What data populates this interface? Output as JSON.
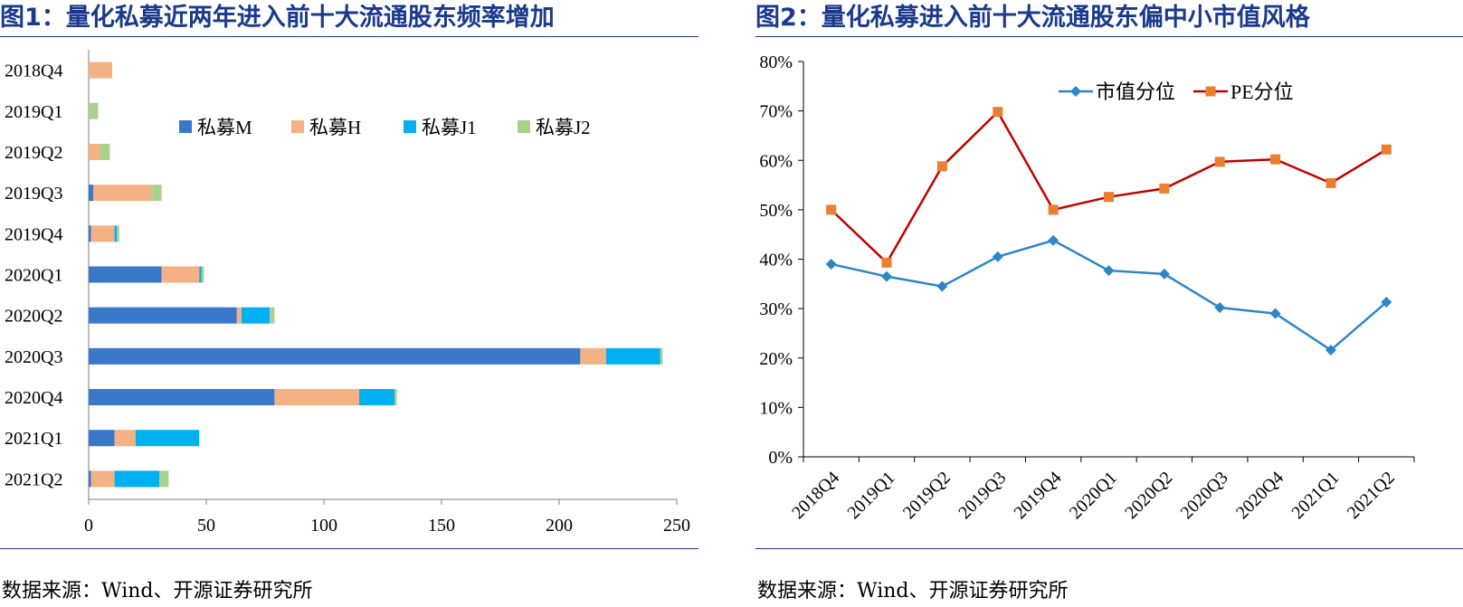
{
  "figures": [
    {
      "title": "图1：量化私募近两年进入前十大流通股东频率增加",
      "source": "数据来源：Wind、开源证券研究所"
    },
    {
      "title": "图2：量化私募进入前十大流通股东偏中小市值风格",
      "source": "数据来源：Wind、开源证券研究所"
    }
  ],
  "chart_data": [
    {
      "type": "bar",
      "orientation": "horizontal",
      "stacked": true,
      "categories": [
        "2018Q4",
        "2019Q1",
        "2019Q2",
        "2019Q3",
        "2019Q4",
        "2020Q1",
        "2020Q2",
        "2020Q3",
        "2020Q4",
        "2021Q1",
        "2021Q2"
      ],
      "series": [
        {
          "name": "私募M",
          "color": "#3a78c9",
          "values": [
            0,
            0,
            0,
            2,
            1,
            31,
            63,
            209,
            79,
            11,
            1
          ]
        },
        {
          "name": "私募H",
          "color": "#f4b183",
          "values": [
            10,
            0,
            5,
            25,
            10,
            16,
            2,
            11,
            36,
            9,
            10
          ]
        },
        {
          "name": "私募J1",
          "color": "#00b0f0",
          "values": [
            0,
            0,
            0,
            0,
            1,
            1,
            12,
            23,
            15,
            27,
            19
          ]
        },
        {
          "name": "私募J2",
          "color": "#a9d18e",
          "values": [
            0,
            4,
            4,
            4,
            1,
            1,
            2,
            1,
            1,
            0,
            4
          ]
        }
      ],
      "xlim": [
        0,
        250
      ],
      "xticks": [
        0,
        50,
        100,
        150,
        200,
        250
      ],
      "legend": "top-center",
      "grid": false
    },
    {
      "type": "line",
      "categories": [
        "2018Q4",
        "2019Q1",
        "2019Q2",
        "2019Q3",
        "2019Q4",
        "2020Q1",
        "2020Q2",
        "2020Q3",
        "2020Q4",
        "2021Q1",
        "2021Q2"
      ],
      "series": [
        {
          "name": "市值分位",
          "color": "#2e86c8",
          "marker": "diamond",
          "values": [
            39,
            36.5,
            34.5,
            40.5,
            43.8,
            37.7,
            37.0,
            30.2,
            29.0,
            21.6,
            31.3
          ]
        },
        {
          "name": "PE分位",
          "color": "#c00000",
          "marker_color": "#ed7d31",
          "marker": "square",
          "values": [
            50,
            39.3,
            58.8,
            69.8,
            50,
            52.6,
            54.3,
            59.7,
            60.2,
            55.4,
            62.2
          ]
        }
      ],
      "ylim": [
        0,
        80
      ],
      "yticks": [
        "0%",
        "10%",
        "20%",
        "30%",
        "40%",
        "50%",
        "60%",
        "70%",
        "80%"
      ],
      "ytick_values": [
        0,
        10,
        20,
        30,
        40,
        50,
        60,
        70,
        80
      ],
      "legend": "top-center",
      "grid": false
    }
  ]
}
